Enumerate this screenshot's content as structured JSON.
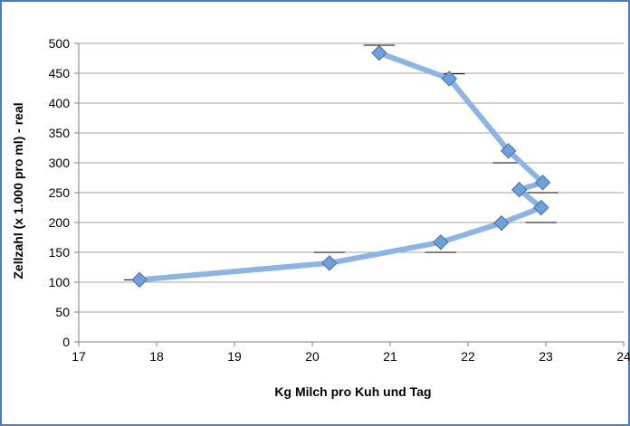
{
  "colors": {
    "border": "#4a7ebb",
    "line": "#8eb4e3",
    "marker_fill": "#6fa0d8",
    "marker_stroke": "#3f6fb0",
    "gridline": "#a6a6a6",
    "axis": "#7f7f7f"
  },
  "chart_data": {
    "type": "line",
    "xlabel": "Kg Milch pro Kuh und Tag",
    "ylabel": "Zellzahl (x 1.000 pro ml) - real",
    "xlim": [
      17,
      24
    ],
    "ylim": [
      0,
      500
    ],
    "xticks": [
      17,
      18,
      19,
      20,
      21,
      22,
      23,
      24
    ],
    "yticks": [
      0,
      50,
      100,
      150,
      200,
      250,
      300,
      350,
      400,
      450,
      500
    ],
    "grid": "horizontal",
    "series": [
      {
        "x": [
          17.78,
          20.22,
          21.65,
          22.43,
          22.94,
          22.66,
          22.96,
          22.52,
          21.76,
          20.86
        ],
        "y": [
          104,
          132,
          167,
          199,
          225,
          255,
          267,
          320,
          441,
          484
        ]
      }
    ],
    "error_bars": [
      {
        "x": 17.78,
        "y": 104,
        "xerr": 0.2
      },
      {
        "x": 20.22,
        "y": 150,
        "xerr": 0.2
      },
      {
        "x": 21.65,
        "y": 150,
        "xerr": 0.2
      },
      {
        "x": 22.94,
        "y": 200,
        "xerr": 0.2
      },
      {
        "x": 22.52,
        "y": 300,
        "xerr": 0.2
      },
      {
        "x": 22.96,
        "y": 250,
        "xerr": 0.2
      },
      {
        "x": 21.76,
        "y": 449,
        "xerr": 0.2
      },
      {
        "x": 20.86,
        "y": 497,
        "xerr": 0.2
      }
    ]
  }
}
